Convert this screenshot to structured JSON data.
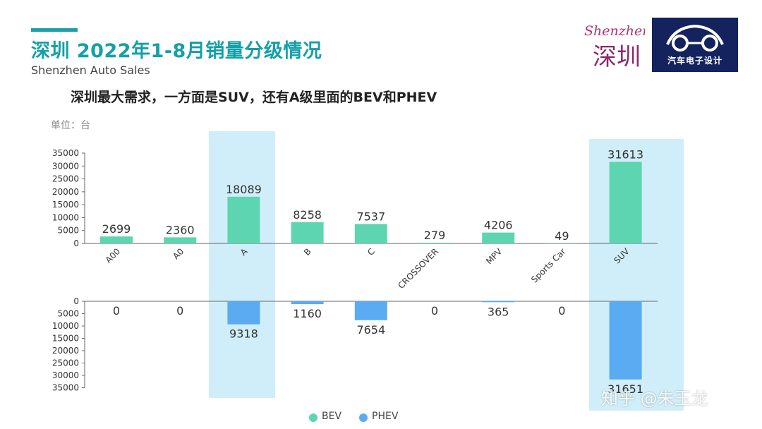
{
  "header": {
    "title": "深圳 2022年1-8月销量分级情况",
    "subtitle": "Shenzhen Auto Sales",
    "headline": "深圳最大需求，一方面是SUV，还有A级里面的BEV和PHEV",
    "unit": "单位：台"
  },
  "logos": {
    "city_script": "Shenzhen",
    "city_chinese": "深圳",
    "brand_label": "汽车电子设计"
  },
  "watermark": "知乎 @朱玉龙",
  "colors": {
    "bev": "#5dd5b0",
    "phev": "#5aabf2",
    "highlight": "#cfeef9",
    "title_accent": "#14a0a8",
    "logo_bg": "#14235e"
  },
  "chart_data": {
    "type": "bar",
    "categories": [
      "A00",
      "A0",
      "A",
      "B",
      "C",
      "CROSSOVER",
      "MPV",
      "Sports Car",
      "SUV"
    ],
    "highlighted_categories": [
      "A",
      "SUV"
    ],
    "series": [
      {
        "name": "BEV",
        "values": [
          2699,
          2360,
          18089,
          8258,
          7537,
          279,
          4206,
          49,
          31613
        ]
      },
      {
        "name": "PHEV",
        "values": [
          0,
          0,
          9318,
          1160,
          7654,
          0,
          365,
          0,
          31651
        ]
      }
    ],
    "y_ticks": [
      0,
      5000,
      10000,
      15000,
      20000,
      25000,
      30000,
      35000
    ],
    "ylim": [
      0,
      35000
    ],
    "phev_axis_inverted": true,
    "legend": [
      "BEV",
      "PHEV"
    ],
    "legend_position": "bottom-center"
  }
}
